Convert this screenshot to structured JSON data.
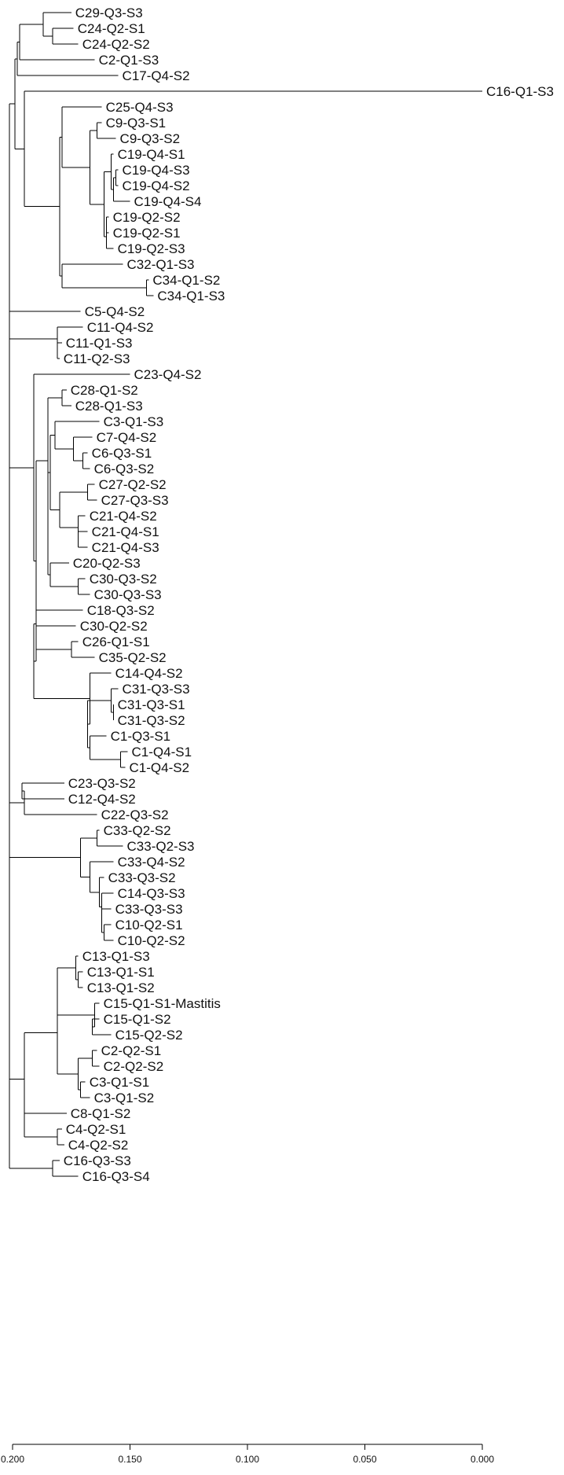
{
  "chart_data": {
    "type": "dendrogram",
    "x_axis": {
      "reversed": true,
      "range": [
        0.2,
        0.0
      ],
      "ticks": [
        {
          "value": 0.2,
          "label": "0.200"
        },
        {
          "value": 0.15,
          "label": "0.150"
        },
        {
          "value": 0.1,
          "label": "0.100"
        },
        {
          "value": 0.05,
          "label": "0.050"
        },
        {
          "value": 0.0,
          "label": "0.000"
        }
      ]
    },
    "leaves": [
      {
        "label": "C29-Q3-S3",
        "x": 0.175
      },
      {
        "label": "C24-Q2-S1",
        "x": 0.174
      },
      {
        "label": "C24-Q2-S2",
        "x": 0.172
      },
      {
        "label": "C2-Q1-S3",
        "x": 0.165
      },
      {
        "label": "C17-Q4-S2",
        "x": 0.155
      },
      {
        "label": "C16-Q1-S3",
        "x": 0.0
      },
      {
        "label": "C25-Q4-S3",
        "x": 0.162
      },
      {
        "label": "C9-Q3-S1",
        "x": 0.162
      },
      {
        "label": "C9-Q3-S2",
        "x": 0.156
      },
      {
        "label": "C19-Q4-S1",
        "x": 0.157
      },
      {
        "label": "C19-Q4-S3",
        "x": 0.155
      },
      {
        "label": "C19-Q4-S2",
        "x": 0.155
      },
      {
        "label": "C19-Q4-S4",
        "x": 0.15
      },
      {
        "label": "C19-Q2-S2",
        "x": 0.159
      },
      {
        "label": "C19-Q2-S1",
        "x": 0.159
      },
      {
        "label": "C19-Q2-S3",
        "x": 0.157
      },
      {
        "label": "C32-Q1-S3",
        "x": 0.153
      },
      {
        "label": "C34-Q1-S2",
        "x": 0.142
      },
      {
        "label": "C34-Q1-S3",
        "x": 0.14
      },
      {
        "label": "C5-Q4-S2",
        "x": 0.171
      },
      {
        "label": "C11-Q4-S2",
        "x": 0.17
      },
      {
        "label": "C11-Q1-S3",
        "x": 0.179
      },
      {
        "label": "C11-Q2-S3",
        "x": 0.18
      },
      {
        "label": "C23-Q4-S2",
        "x": 0.15
      },
      {
        "label": "C28-Q1-S2",
        "x": 0.177
      },
      {
        "label": "C28-Q1-S3",
        "x": 0.175
      },
      {
        "label": "C3-Q1-S3",
        "x": 0.163
      },
      {
        "label": "C7-Q4-S2",
        "x": 0.166
      },
      {
        "label": "C6-Q3-S1",
        "x": 0.168
      },
      {
        "label": "C6-Q3-S2",
        "x": 0.167
      },
      {
        "label": "C27-Q2-S2",
        "x": 0.165
      },
      {
        "label": "C27-Q3-S3",
        "x": 0.164
      },
      {
        "label": "C21-Q4-S2",
        "x": 0.169
      },
      {
        "label": "C21-Q4-S1",
        "x": 0.168
      },
      {
        "label": "C21-Q4-S3",
        "x": 0.168
      },
      {
        "label": "C20-Q2-S3",
        "x": 0.176
      },
      {
        "label": "C30-Q3-S2",
        "x": 0.169
      },
      {
        "label": "C30-Q3-S3",
        "x": 0.167
      },
      {
        "label": "C18-Q3-S2",
        "x": 0.17
      },
      {
        "label": "C30-Q2-S2",
        "x": 0.173
      },
      {
        "label": "C26-Q1-S1",
        "x": 0.172
      },
      {
        "label": "C35-Q2-S2",
        "x": 0.165
      },
      {
        "label": "C14-Q4-S2",
        "x": 0.158
      },
      {
        "label": "C31-Q3-S3",
        "x": 0.155
      },
      {
        "label": "C31-Q3-S1",
        "x": 0.157
      },
      {
        "label": "C31-Q3-S2",
        "x": 0.157
      },
      {
        "label": "C1-Q3-S1",
        "x": 0.16
      },
      {
        "label": "C1-Q4-S1",
        "x": 0.151
      },
      {
        "label": "C1-Q4-S2",
        "x": 0.152
      },
      {
        "label": "C23-Q3-S2",
        "x": 0.178
      },
      {
        "label": "C12-Q4-S2",
        "x": 0.178
      },
      {
        "label": "C22-Q3-S2",
        "x": 0.164
      },
      {
        "label": "C33-Q2-S2",
        "x": 0.163
      },
      {
        "label": "C33-Q2-S3",
        "x": 0.153
      },
      {
        "label": "C33-Q4-S2",
        "x": 0.157
      },
      {
        "label": "C33-Q3-S2",
        "x": 0.161
      },
      {
        "label": "C14-Q3-S3",
        "x": 0.157
      },
      {
        "label": "C33-Q3-S3",
        "x": 0.158
      },
      {
        "label": "C10-Q2-S1",
        "x": 0.158
      },
      {
        "label": "C10-Q2-S2",
        "x": 0.157
      },
      {
        "label": "C13-Q1-S3",
        "x": 0.172
      },
      {
        "label": "C13-Q1-S1",
        "x": 0.17
      },
      {
        "label": "C13-Q1-S2",
        "x": 0.17
      },
      {
        "label": "C15-Q1-S1-Mastitis",
        "x": 0.163
      },
      {
        "label": "C15-Q1-S2",
        "x": 0.163
      },
      {
        "label": "C15-Q2-S2",
        "x": 0.158
      },
      {
        "label": "C2-Q2-S1",
        "x": 0.164
      },
      {
        "label": "C2-Q2-S2",
        "x": 0.163
      },
      {
        "label": "C3-Q1-S1",
        "x": 0.169
      },
      {
        "label": "C3-Q1-S2",
        "x": 0.167
      },
      {
        "label": "C8-Q1-S2",
        "x": 0.177
      },
      {
        "label": "C4-Q2-S1",
        "x": 0.179
      },
      {
        "label": "C4-Q2-S2",
        "x": 0.178
      },
      {
        "label": "C16-Q3-S3",
        "x": 0.18
      },
      {
        "label": "C16-Q3-S4",
        "x": 0.172
      }
    ],
    "clusters": [
      {
        "leaves": [
          1,
          2
        ],
        "x": 0.183
      },
      {
        "leaves": [
          0,
          1,
          2
        ],
        "x": 0.187
      },
      {
        "leaves": [
          0,
          1,
          2,
          3
        ],
        "x": 0.197
      },
      {
        "leaves": [
          0,
          1,
          2,
          3,
          4
        ],
        "x": 0.198
      },
      {
        "leaves": [
          7,
          8
        ],
        "x": 0.164
      },
      {
        "leaves": [
          10,
          11
        ],
        "x": 0.156
      },
      {
        "leaves": [
          10,
          11,
          12
        ],
        "x": 0.157
      },
      {
        "leaves": [
          9,
          10,
          11,
          12
        ],
        "x": 0.158
      },
      {
        "leaves": [
          13,
          14
        ],
        "x": 0.16
      },
      {
        "leaves": [
          13,
          14,
          15
        ],
        "x": 0.16
      },
      {
        "leaves": [
          9,
          10,
          11,
          12,
          13,
          14,
          15
        ],
        "x": 0.161
      },
      {
        "leaves": [
          7,
          8,
          9,
          10,
          11,
          12,
          13,
          14,
          15
        ],
        "x": 0.167
      },
      {
        "leaves": [
          6,
          7,
          8,
          9,
          10,
          11,
          12,
          13,
          14,
          15
        ],
        "x": 0.179
      },
      {
        "leaves": [
          17,
          18
        ],
        "x": 0.143
      },
      {
        "leaves": [
          16,
          17,
          18
        ],
        "x": 0.179
      },
      {
        "leaves": [
          6,
          7,
          8,
          9,
          10,
          11,
          12,
          13,
          14,
          15,
          16,
          17,
          18
        ],
        "x": 0.18
      },
      {
        "leaves": [
          5,
          6,
          7,
          8,
          9,
          10,
          11,
          12,
          13,
          14,
          15,
          16,
          17,
          18
        ],
        "x": 0.195
      },
      {
        "leaves": [
          0,
          1,
          2,
          3,
          4,
          5,
          6,
          7,
          8,
          9,
          10,
          11,
          12,
          13,
          14,
          15,
          16,
          17,
          18
        ],
        "x": 0.199
      },
      {
        "leaves": [
          21,
          22
        ],
        "x": 0.181
      },
      {
        "leaves": [
          20,
          21,
          22
        ],
        "x": 0.181
      },
      {
        "leaves": [
          24,
          25
        ],
        "x": 0.179
      },
      {
        "leaves": [
          28,
          29
        ],
        "x": 0.17
      },
      {
        "leaves": [
          27,
          28,
          29
        ],
        "x": 0.174
      },
      {
        "leaves": [
          26,
          27,
          28,
          29
        ],
        "x": 0.182
      },
      {
        "leaves": [
          30,
          31
        ],
        "x": 0.168
      },
      {
        "leaves": [
          33,
          34
        ],
        "x": 0.172
      },
      {
        "leaves": [
          32,
          33,
          34
        ],
        "x": 0.172
      },
      {
        "leaves": [
          30,
          31,
          32,
          33,
          34
        ],
        "x": 0.18
      },
      {
        "leaves": [
          26,
          27,
          28,
          29,
          30,
          31,
          32,
          33,
          34
        ],
        "x": 0.184
      },
      {
        "leaves": [
          36,
          37
        ],
        "x": 0.172
      },
      {
        "leaves": [
          35,
          36,
          37
        ],
        "x": 0.184
      },
      {
        "leaves": [
          26,
          27,
          28,
          29,
          30,
          31,
          32,
          33,
          34,
          35,
          36,
          37
        ],
        "x": 0.185
      },
      {
        "leaves": [
          24,
          25,
          26,
          27,
          28,
          29,
          30,
          31,
          32,
          33,
          34,
          35,
          36,
          37
        ],
        "x": 0.185
      },
      {
        "leaves": [
          40,
          41
        ],
        "x": 0.175
      },
      {
        "leaves": [
          39,
          40,
          41
        ],
        "x": 0.19
      },
      {
        "leaves": [
          38,
          39,
          40,
          41
        ],
        "x": 0.19
      },
      {
        "leaves": [
          44,
          45
        ],
        "x": 0.157
      },
      {
        "leaves": [
          43,
          44,
          45
        ],
        "x": 0.158
      },
      {
        "leaves": [
          47,
          48
        ],
        "x": 0.154
      },
      {
        "leaves": [
          46,
          47,
          48
        ],
        "x": 0.167
      },
      {
        "leaves": [
          43,
          44,
          45,
          46,
          47,
          48
        ],
        "x": 0.168
      },
      {
        "leaves": [
          42,
          43,
          44,
          45,
          46,
          47,
          48
        ],
        "x": 0.167
      },
      {
        "leaves": [
          38,
          39,
          40,
          41,
          42,
          43,
          44,
          45,
          46,
          47,
          48
        ],
        "x": 0.191
      },
      {
        "leaves": [
          24,
          25,
          26,
          27,
          28,
          29,
          30,
          31,
          32,
          33,
          34,
          35,
          36,
          37,
          38,
          39,
          40,
          41,
          42,
          43,
          44,
          45,
          46,
          47,
          48
        ],
        "x": 0.19
      },
      {
        "leaves": [
          23,
          24,
          25,
          26,
          27,
          28,
          29,
          30,
          31,
          32,
          33,
          34,
          35,
          36,
          37,
          38,
          39,
          40,
          41,
          42,
          43,
          44,
          45,
          46,
          47,
          48
        ],
        "x": 0.191
      },
      {
        "leaves": [
          49,
          50
        ],
        "x": 0.196
      },
      {
        "leaves": [
          49,
          50,
          51
        ],
        "x": 0.195
      },
      {
        "leaves": [
          52,
          53
        ],
        "x": 0.164
      },
      {
        "leaves": [
          58,
          59
        ],
        "x": 0.161
      },
      {
        "leaves": [
          57,
          58,
          59
        ],
        "x": 0.162
      },
      {
        "leaves": [
          56,
          57,
          58,
          59
        ],
        "x": 0.162
      },
      {
        "leaves": [
          55,
          56,
          57,
          58,
          59
        ],
        "x": 0.163
      },
      {
        "leaves": [
          54,
          55,
          56,
          57,
          58,
          59
        ],
        "x": 0.167
      },
      {
        "leaves": [
          52,
          53,
          54,
          55,
          56,
          57,
          58,
          59
        ],
        "x": 0.171
      },
      {
        "leaves": [
          61,
          62
        ],
        "x": 0.172
      },
      {
        "leaves": [
          60,
          61,
          62
        ],
        "x": 0.173
      },
      {
        "leaves": [
          64,
          65
        ],
        "x": 0.166
      },
      {
        "leaves": [
          63,
          64,
          65
        ],
        "x": 0.165
      },
      {
        "leaves": [
          60,
          61,
          62,
          63,
          64,
          65
        ],
        "x": 0.181
      },
      {
        "leaves": [
          66,
          67
        ],
        "x": 0.166
      },
      {
        "leaves": [
          68,
          69
        ],
        "x": 0.171
      },
      {
        "leaves": [
          66,
          67,
          68,
          69
        ],
        "x": 0.172
      },
      {
        "leaves": [
          60,
          61,
          62,
          63,
          64,
          65,
          66,
          67,
          68,
          69
        ],
        "x": 0.181
      },
      {
        "leaves": [
          71,
          72
        ],
        "x": 0.181
      },
      {
        "leaves": [
          70,
          71,
          72
        ],
        "x": 0.195
      },
      {
        "leaves": [
          60,
          61,
          62,
          63,
          64,
          65,
          66,
          67,
          68,
          69,
          70,
          71,
          72
        ],
        "x": 0.195
      },
      {
        "leaves": [
          73,
          74
        ],
        "x": 0.183
      }
    ]
  }
}
